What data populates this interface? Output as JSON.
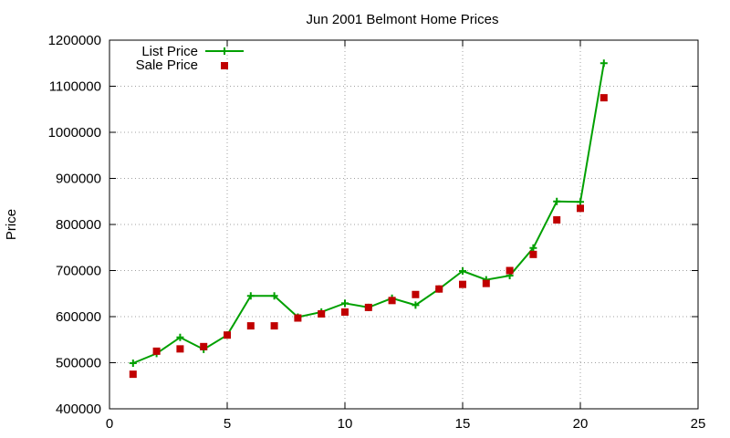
{
  "chart_data": {
    "type": "line",
    "title": "Jun 2001 Belmont Home Prices",
    "xlabel": "",
    "ylabel": "Price",
    "xlim": [
      0,
      25
    ],
    "ylim": [
      400000,
      1200000
    ],
    "xticks": [
      0,
      5,
      10,
      15,
      20,
      25
    ],
    "yticks": [
      400000,
      500000,
      600000,
      700000,
      800000,
      900000,
      1000000,
      1100000,
      1200000
    ],
    "grid": true,
    "legend_position": "top-left",
    "series": [
      {
        "name": "List Price",
        "style": "line with plus markers",
        "color": "#00a000",
        "x": [
          1,
          2,
          3,
          4,
          5,
          6,
          7,
          8,
          9,
          10,
          11,
          12,
          13,
          14,
          15,
          16,
          17,
          18,
          19,
          20,
          21
        ],
        "values": [
          499000,
          520000,
          555000,
          529000,
          560000,
          645000,
          645000,
          599000,
          610000,
          629000,
          620000,
          640000,
          625000,
          660000,
          699000,
          680000,
          689000,
          749000,
          850000,
          849000,
          1150000
        ]
      },
      {
        "name": "Sale Price",
        "style": "square markers",
        "color": "#c00000",
        "x": [
          1,
          2,
          3,
          4,
          5,
          6,
          7,
          8,
          9,
          10,
          11,
          12,
          13,
          14,
          15,
          16,
          17,
          18,
          19,
          20,
          21
        ],
        "values": [
          475000,
          525000,
          530000,
          535000,
          560000,
          580000,
          580000,
          597000,
          606000,
          610000,
          620000,
          635000,
          648000,
          660000,
          670000,
          672000,
          700000,
          735000,
          810000,
          835000,
          1075000
        ]
      }
    ]
  }
}
